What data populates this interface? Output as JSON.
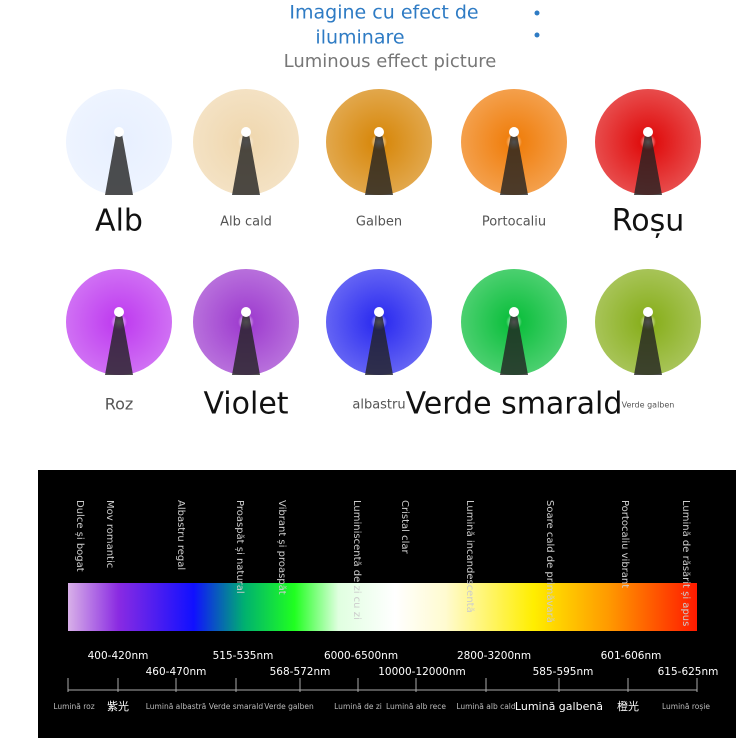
{
  "header": {
    "title_line1": "Imagine cu efect de",
    "title_line2": "iluminare",
    "subtitle": "Luminous effect picture"
  },
  "leds": [
    {
      "label": "Alb",
      "color": "#e8f0ff",
      "size": "large"
    },
    {
      "label": "Alb cald",
      "color": "#f0d8b0",
      "size": "small"
    },
    {
      "label": "Galben",
      "color": "#d88a10",
      "size": "small"
    },
    {
      "label": "Portocaliu",
      "color": "#f08010",
      "size": "small"
    },
    {
      "label": "Roșu",
      "color": "#e01010",
      "size": "large"
    },
    {
      "label": "Roz",
      "color": "#c040f0",
      "size": "medium"
    },
    {
      "label": "Violet",
      "color": "#a040d0",
      "size": "large"
    },
    {
      "label": "albastru",
      "color": "#3030f0",
      "size": "small"
    },
    {
      "label": "Verde smarald",
      "color": "#10c040",
      "size": "large"
    },
    {
      "label": "Verde galben",
      "color": "#8ab020",
      "size": "tiny"
    }
  ],
  "spectrum": {
    "descriptions": [
      "Dulce și bogat",
      "Mov romantic",
      "Albastru regal",
      "Proaspăt și natural",
      "Vibrant și proaspăt",
      "Luminiscentă de zi cu zi",
      "Cristal clar",
      "Lumină incandescentă",
      "Soare cald de primăvară",
      "Portocaliu vibrant",
      "Lumină de răsărit și apus"
    ],
    "wavelengths": [
      "400-420nm",
      "460-470nm",
      "515-535nm",
      "568-572nm",
      "6000-6500nm",
      "10000-12000nm",
      "2800-3200nm",
      "585-595nm",
      "601-606nm",
      "615-625nm"
    ],
    "names": [
      "Lumină roz",
      "紫光",
      "Lumină albastră",
      "Verde smarald",
      "Verde galben",
      "Lumină de zi",
      "Lumină alb rece",
      "Lumină alb cald",
      "Lumină galbenă",
      "橙光",
      "Lumină roșie"
    ]
  }
}
